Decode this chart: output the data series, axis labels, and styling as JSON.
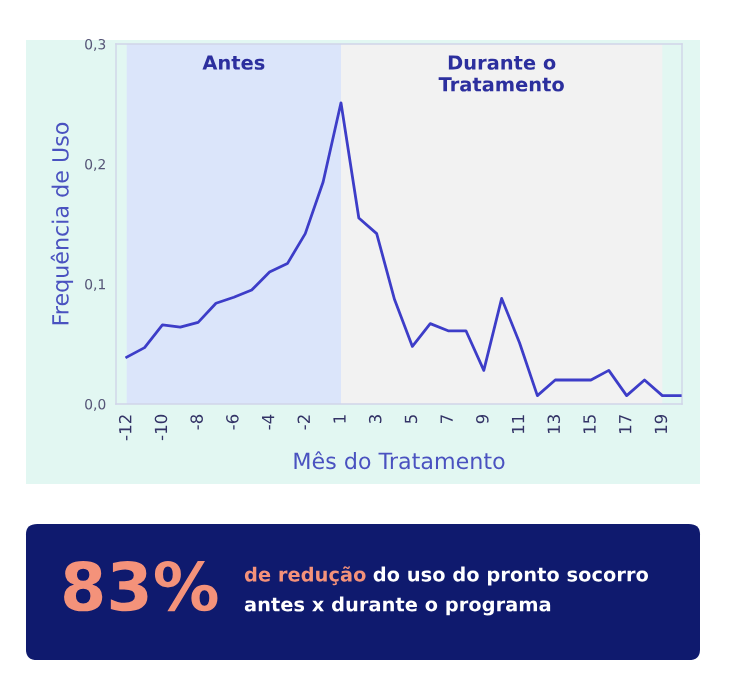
{
  "chart_data": {
    "type": "line",
    "xlabel": "Mês do Tratamento",
    "ylabel": "Frequência de Uso",
    "categories": [
      "-12",
      null,
      "-10",
      null,
      "-8",
      null,
      "-6",
      null,
      "-4",
      null,
      "-2",
      null,
      "1",
      null,
      "3",
      null,
      "5",
      null,
      "7",
      null,
      "9",
      null,
      "11",
      null,
      "13",
      null,
      "15",
      null,
      "17",
      null,
      "19",
      null
    ],
    "series": [
      {
        "color": "#3d3dc8",
        "values": [
          0.039,
          0.047,
          0.066,
          0.064,
          0.068,
          0.084,
          0.089,
          0.095,
          0.11,
          0.117,
          0.142,
          0.185,
          0.251,
          0.155,
          0.142,
          0.087,
          0.048,
          0.067,
          0.061,
          0.061,
          0.028,
          0.088,
          0.051,
          0.007,
          0.02,
          0.02,
          0.02,
          0.028,
          0.007,
          0.02,
          0.007,
          0.007
        ]
      }
    ],
    "ylim": [
      0,
      0.3
    ],
    "yticks": [
      {
        "value": 0,
        "label": "0,0"
      },
      {
        "value": 0.1,
        "label": "0,1"
      },
      {
        "value": 0.2,
        "label": "0,2"
      },
      {
        "value": 0.3,
        "label": "0,3"
      }
    ],
    "bands": [
      {
        "axis": "x",
        "from": "-12",
        "to": "1",
        "label": "Antes",
        "color": "#dbe5fa"
      },
      {
        "axis": "x",
        "from": "1",
        "to": "19",
        "label": "Durante o\nTratamento",
        "color": "#f2f2f2"
      }
    ],
    "grid": false,
    "marker": "none",
    "line_style": "solid",
    "annotations": [
      "83%",
      "de redução",
      "do uso do pronto socorro",
      "antes x durante o programa"
    ]
  }
}
